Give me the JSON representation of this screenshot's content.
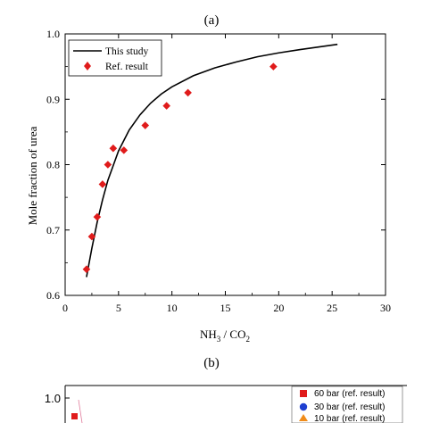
{
  "chart_data": [
    {
      "panel_label": "(a)",
      "type": "line",
      "xlabel": "NH₃ / CO₂",
      "xlabel_parts": {
        "a": "NH",
        "a_sub": "3",
        "sep": " / CO",
        "b_sub": "2"
      },
      "ylabel": "Mole fraction of urea",
      "xlim": [
        0,
        30
      ],
      "ylim": [
        0.6,
        1.0
      ],
      "xticks": [
        "0",
        "5",
        "10",
        "15",
        "20",
        "25",
        "30"
      ],
      "yticks": [
        "0.6",
        "0.7",
        "0.8",
        "0.9",
        "1.0"
      ],
      "legend_position": "top-left",
      "grid": false,
      "series": [
        {
          "name": "This study",
          "kind": "line",
          "color": "#000000",
          "x": [
            2.0,
            2.5,
            3.0,
            3.5,
            4.0,
            5.0,
            6.0,
            7.0,
            8.0,
            9.0,
            10.0,
            12.0,
            14.0,
            16.0,
            18.0,
            20.0,
            22.0,
            25.5
          ],
          "y": [
            0.628,
            0.672,
            0.712,
            0.746,
            0.776,
            0.821,
            0.853,
            0.876,
            0.894,
            0.908,
            0.919,
            0.936,
            0.948,
            0.957,
            0.965,
            0.971,
            0.976,
            0.984
          ]
        },
        {
          "name": "Ref. result",
          "kind": "scatter",
          "marker": "diamond",
          "color": "#e01b1b",
          "x": [
            2.0,
            2.5,
            3.0,
            3.5,
            4.0,
            4.5,
            5.5,
            7.5,
            9.5,
            11.5,
            19.5
          ],
          "y": [
            0.64,
            0.69,
            0.72,
            0.77,
            0.8,
            0.825,
            0.822,
            0.86,
            0.89,
            0.91,
            0.95
          ]
        }
      ]
    },
    {
      "panel_label": "(b)",
      "type": "line",
      "ylim_top_visible": 1.0,
      "yticks": [
        "1.0"
      ],
      "legend_position": "top-right",
      "series": [
        {
          "name": "60 bar (ref. result)",
          "marker": "square",
          "color": "#e01b1b"
        },
        {
          "name": "30 bar (ref. result)",
          "marker": "circle",
          "color": "#1f3fd0"
        },
        {
          "name": "10 bar (ref. result)",
          "marker": "triangle",
          "color": "#f08c1a"
        }
      ]
    }
  ]
}
